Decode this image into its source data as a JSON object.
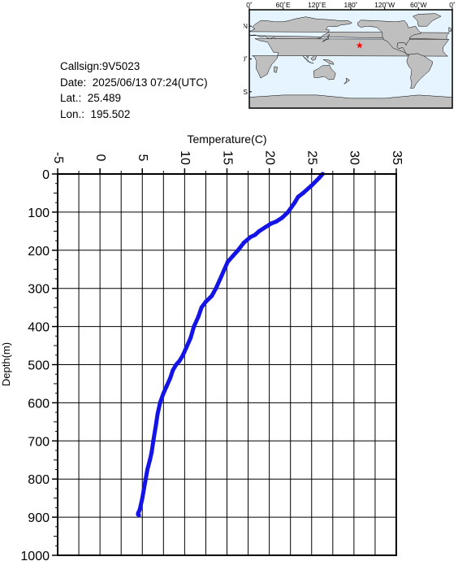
{
  "info": {
    "callsign": "Callsign:9V5023",
    "date": "Date:  2025/06/13 07:24(UTC)",
    "lat": "Lat.:  25.489",
    "lon": "Lon.:  195.502"
  },
  "map": {
    "lon_labels": [
      "0˚",
      "60˚E",
      "120˚E",
      "180˚",
      "120˚W",
      "60˚W",
      "0˚"
    ],
    "lat_labels": [
      "60˚N",
      "0˚",
      "60˚S"
    ],
    "marker_lat": 25.489,
    "marker_lon": 195.502,
    "marker_symbol": "★",
    "colors": {
      "ocean": "#e6f4ff",
      "land": "#bfbfbf",
      "marker": "#ff0000"
    }
  },
  "chart_data": {
    "type": "line",
    "xlabel": "Temperature(C)",
    "ylabel": "Depth(m)",
    "xlim": [
      -5,
      35
    ],
    "ylim": [
      1000,
      0
    ],
    "x_ticks": [
      "-5",
      "0",
      "5",
      "10",
      "15",
      "20",
      "25",
      "30",
      "35"
    ],
    "y_ticks": [
      "0",
      "100",
      "200",
      "300",
      "400",
      "500",
      "600",
      "700",
      "800",
      "900",
      "1000"
    ],
    "grid": true,
    "series": [
      {
        "color": "#1414e6",
        "x": [
          26.3,
          25.9,
          25.0,
          24.0,
          23.4,
          23.0,
          22.2,
          21.5,
          20.8,
          20.2,
          19.5,
          18.8,
          18.3,
          17.8,
          17.0,
          16.3,
          15.7,
          15.1,
          14.6,
          14.2,
          13.7,
          13.2,
          12.5,
          12.0,
          11.6,
          11.1,
          10.7,
          10.2,
          9.8,
          9.4,
          9.0,
          8.6,
          8.3,
          7.9,
          7.5,
          7.1,
          6.8,
          6.6,
          6.3,
          6.1,
          5.9,
          5.6,
          5.4,
          5.2,
          5.0,
          4.8,
          4.7,
          4.6,
          4.5,
          4.5,
          4.6
        ],
        "y": [
          0,
          10,
          30,
          50,
          60,
          75,
          100,
          115,
          125,
          130,
          140,
          150,
          160,
          165,
          180,
          200,
          215,
          230,
          255,
          275,
          300,
          320,
          335,
          350,
          375,
          400,
          430,
          455,
          475,
          490,
          500,
          515,
          535,
          555,
          575,
          600,
          630,
          660,
          700,
          730,
          750,
          775,
          800,
          825,
          850,
          870,
          880,
          885,
          890,
          893,
          895
        ]
      }
    ]
  }
}
